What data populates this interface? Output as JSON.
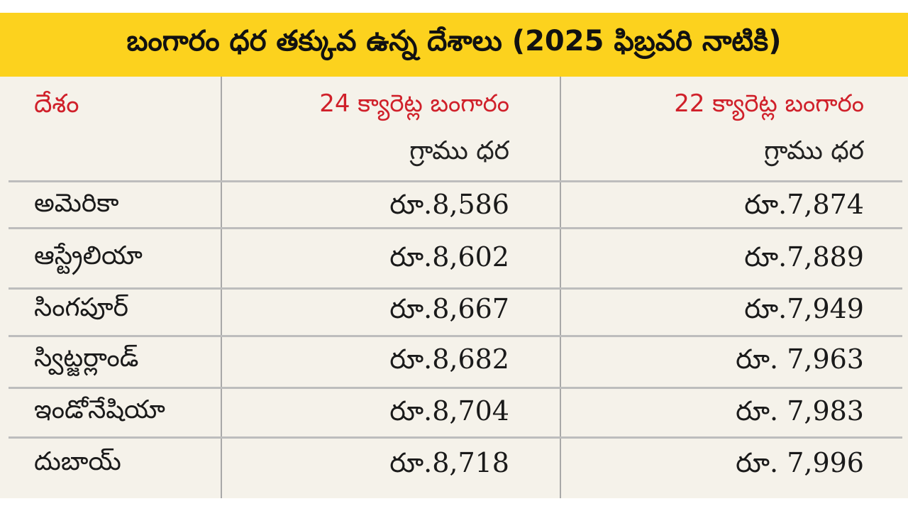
{
  "title": "బంగారం ధర తక్కువ ఉన్న దేశాలు (2025 ఫిబ్రవరి నాటికి)",
  "header": {
    "country": "దేశం",
    "col24": "24 క్యారెట్ల బంగారం",
    "col22": "22 క్యారెట్ల బంగారం",
    "sub24": "గ్రాము ధర",
    "sub22": "గ్రాము ధర"
  },
  "rows": [
    {
      "country": "అమెరికా",
      "k24": "రూ.8,586",
      "k22": "రూ.7,874"
    },
    {
      "country": "ఆస్ట్రేలియా",
      "k24": "రూ.8,602",
      "k22": "రూ.7,889"
    },
    {
      "country": "సింగపూర్",
      "k24": "రూ.8,667",
      "k22": "రూ.7,949"
    },
    {
      "country": "స్విట్జర్లాండ్",
      "k24": "రూ.8,682",
      "k22": "రూ. 7,963"
    },
    {
      "country": "ఇండోనేషియా",
      "k24": "రూ.8,704",
      "k22": "రూ. 7,983"
    },
    {
      "country": "దుబాయ్",
      "k24": "రూ.8,718",
      "k22": "రూ. 7,996"
    }
  ],
  "colors": {
    "title_bg": "#fcd21e",
    "header_text": "#d0202a",
    "body_bg": "#f5f2ea"
  }
}
